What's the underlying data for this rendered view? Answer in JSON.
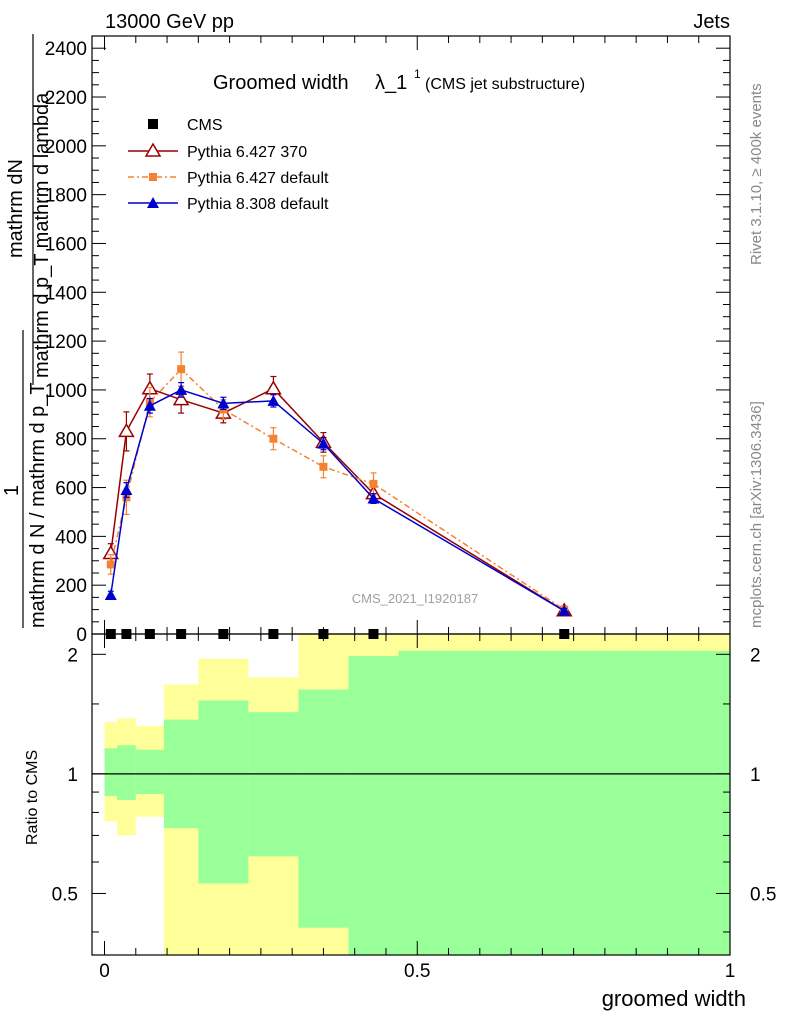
{
  "header": {
    "left": "13000 GeV pp",
    "right": "Jets"
  },
  "side": {
    "rivet": "Rivet 3.1.10, ≥ 400k events",
    "mcplots": "mcplots.cern.ch [arXiv:1306.3436]"
  },
  "chart_data": {
    "type": "line",
    "title": "Groomed width λ_1^1 (CMS jet substructure)",
    "title_main": "Groomed width",
    "title_lambda": "λ_1",
    "title_sup": "1",
    "title_sub": "(CMS jet substructure)",
    "watermark": "CMS_2021_I1920187",
    "xlabel": "groomed width",
    "ylabel_top_num": "mathrm dN",
    "ylabel_top_den": "mathrm d p_T mathrm d lambda",
    "ylabel_one": "1",
    "ylabel_bot": "mathrm d N / mathrm d p_T",
    "ratio_ylabel": "Ratio to CMS",
    "xlim": [
      -0.02,
      1.0
    ],
    "ylim": [
      0,
      2450
    ],
    "ratio_ylim": [
      0.35,
      2.25
    ],
    "x_ticks": [
      0,
      0.5,
      1
    ],
    "x_tick_labels": [
      "0",
      "0.5",
      "1"
    ],
    "y_ticks": [
      0,
      200,
      400,
      600,
      800,
      1000,
      1200,
      1400,
      1600,
      1800,
      2000,
      2200,
      2400
    ],
    "y_tick_labels": [
      "0",
      "200",
      "400",
      "600",
      "800",
      "1000",
      "1200",
      "1400",
      "1600",
      "1800",
      "2000",
      "2200",
      "2400"
    ],
    "ratio_ticks": [
      0.5,
      1,
      2
    ],
    "ratio_tick_labels": [
      "0.5",
      "1",
      "2"
    ],
    "bins": [
      {
        "lo": 0.0,
        "hi": 0.02
      },
      {
        "lo": 0.02,
        "hi": 0.05
      },
      {
        "lo": 0.05,
        "hi": 0.095
      },
      {
        "lo": 0.095,
        "hi": 0.15
      },
      {
        "lo": 0.15,
        "hi": 0.23
      },
      {
        "lo": 0.23,
        "hi": 0.31
      },
      {
        "lo": 0.31,
        "hi": 0.39
      },
      {
        "lo": 0.39,
        "hi": 0.47
      },
      {
        "lo": 0.47,
        "hi": 1.0
      }
    ],
    "band_yellow": [
      {
        "lo": 0.76,
        "hi": 1.35
      },
      {
        "lo": 0.7,
        "hi": 1.38
      },
      {
        "lo": 0.78,
        "hi": 1.32
      },
      {
        "lo": 0.35,
        "hi": 1.68
      },
      {
        "lo": 0.35,
        "hi": 1.95
      },
      {
        "lo": 0.35,
        "hi": 1.75
      },
      {
        "lo": 0.35,
        "hi": 2.25
      },
      {
        "lo": 0.35,
        "hi": 2.25
      },
      {
        "lo": 0.35,
        "hi": 2.25
      }
    ],
    "band_green": [
      {
        "lo": 0.88,
        "hi": 1.16
      },
      {
        "lo": 0.86,
        "hi": 1.18
      },
      {
        "lo": 0.89,
        "hi": 1.15
      },
      {
        "lo": 0.73,
        "hi": 1.37
      },
      {
        "lo": 0.53,
        "hi": 1.53
      },
      {
        "lo": 0.62,
        "hi": 1.43
      },
      {
        "lo": 0.41,
        "hi": 1.63
      },
      {
        "lo": 0.35,
        "hi": 1.98
      },
      {
        "lo": 0.35,
        "hi": 2.04
      }
    ],
    "series": [
      {
        "name": "CMS",
        "color": "#000000",
        "marker": "square",
        "x": [
          0.01,
          0.035,
          0.0725,
          0.1225,
          0.19,
          0.27,
          0.35,
          0.43,
          0.735
        ],
        "y": [
          0,
          0,
          0,
          0,
          0,
          0,
          0,
          0,
          0
        ]
      },
      {
        "name": "Pythia 6.427 370",
        "color": "#990000",
        "marker": "triangle-open",
        "x": [
          0.01,
          0.035,
          0.0725,
          0.1225,
          0.19,
          0.27,
          0.35,
          0.43,
          0.735
        ],
        "y": [
          330,
          830,
          1005,
          960,
          905,
          1005,
          785,
          575,
          95
        ],
        "err": [
          40,
          80,
          60,
          55,
          40,
          50,
          40,
          40,
          15
        ]
      },
      {
        "name": "Pythia 6.427 default",
        "color": "#f58232",
        "marker": "square-small",
        "x": [
          0.01,
          0.035,
          0.0725,
          0.1225,
          0.19,
          0.27,
          0.35,
          0.43,
          0.735
        ],
        "y": [
          285,
          560,
          950,
          1085,
          920,
          800,
          685,
          615,
          100
        ],
        "err": [
          40,
          70,
          60,
          70,
          40,
          45,
          45,
          45,
          15
        ]
      },
      {
        "name": "Pythia 8.308 default",
        "color": "#0000cc",
        "marker": "triangle-filled",
        "x": [
          0.01,
          0.035,
          0.0725,
          0.1225,
          0.19,
          0.27,
          0.35,
          0.43,
          0.735
        ],
        "y": [
          160,
          590,
          935,
          1000,
          945,
          955,
          780,
          555,
          95
        ],
        "err": [
          15,
          30,
          30,
          30,
          25,
          25,
          25,
          20,
          10
        ]
      }
    ]
  }
}
